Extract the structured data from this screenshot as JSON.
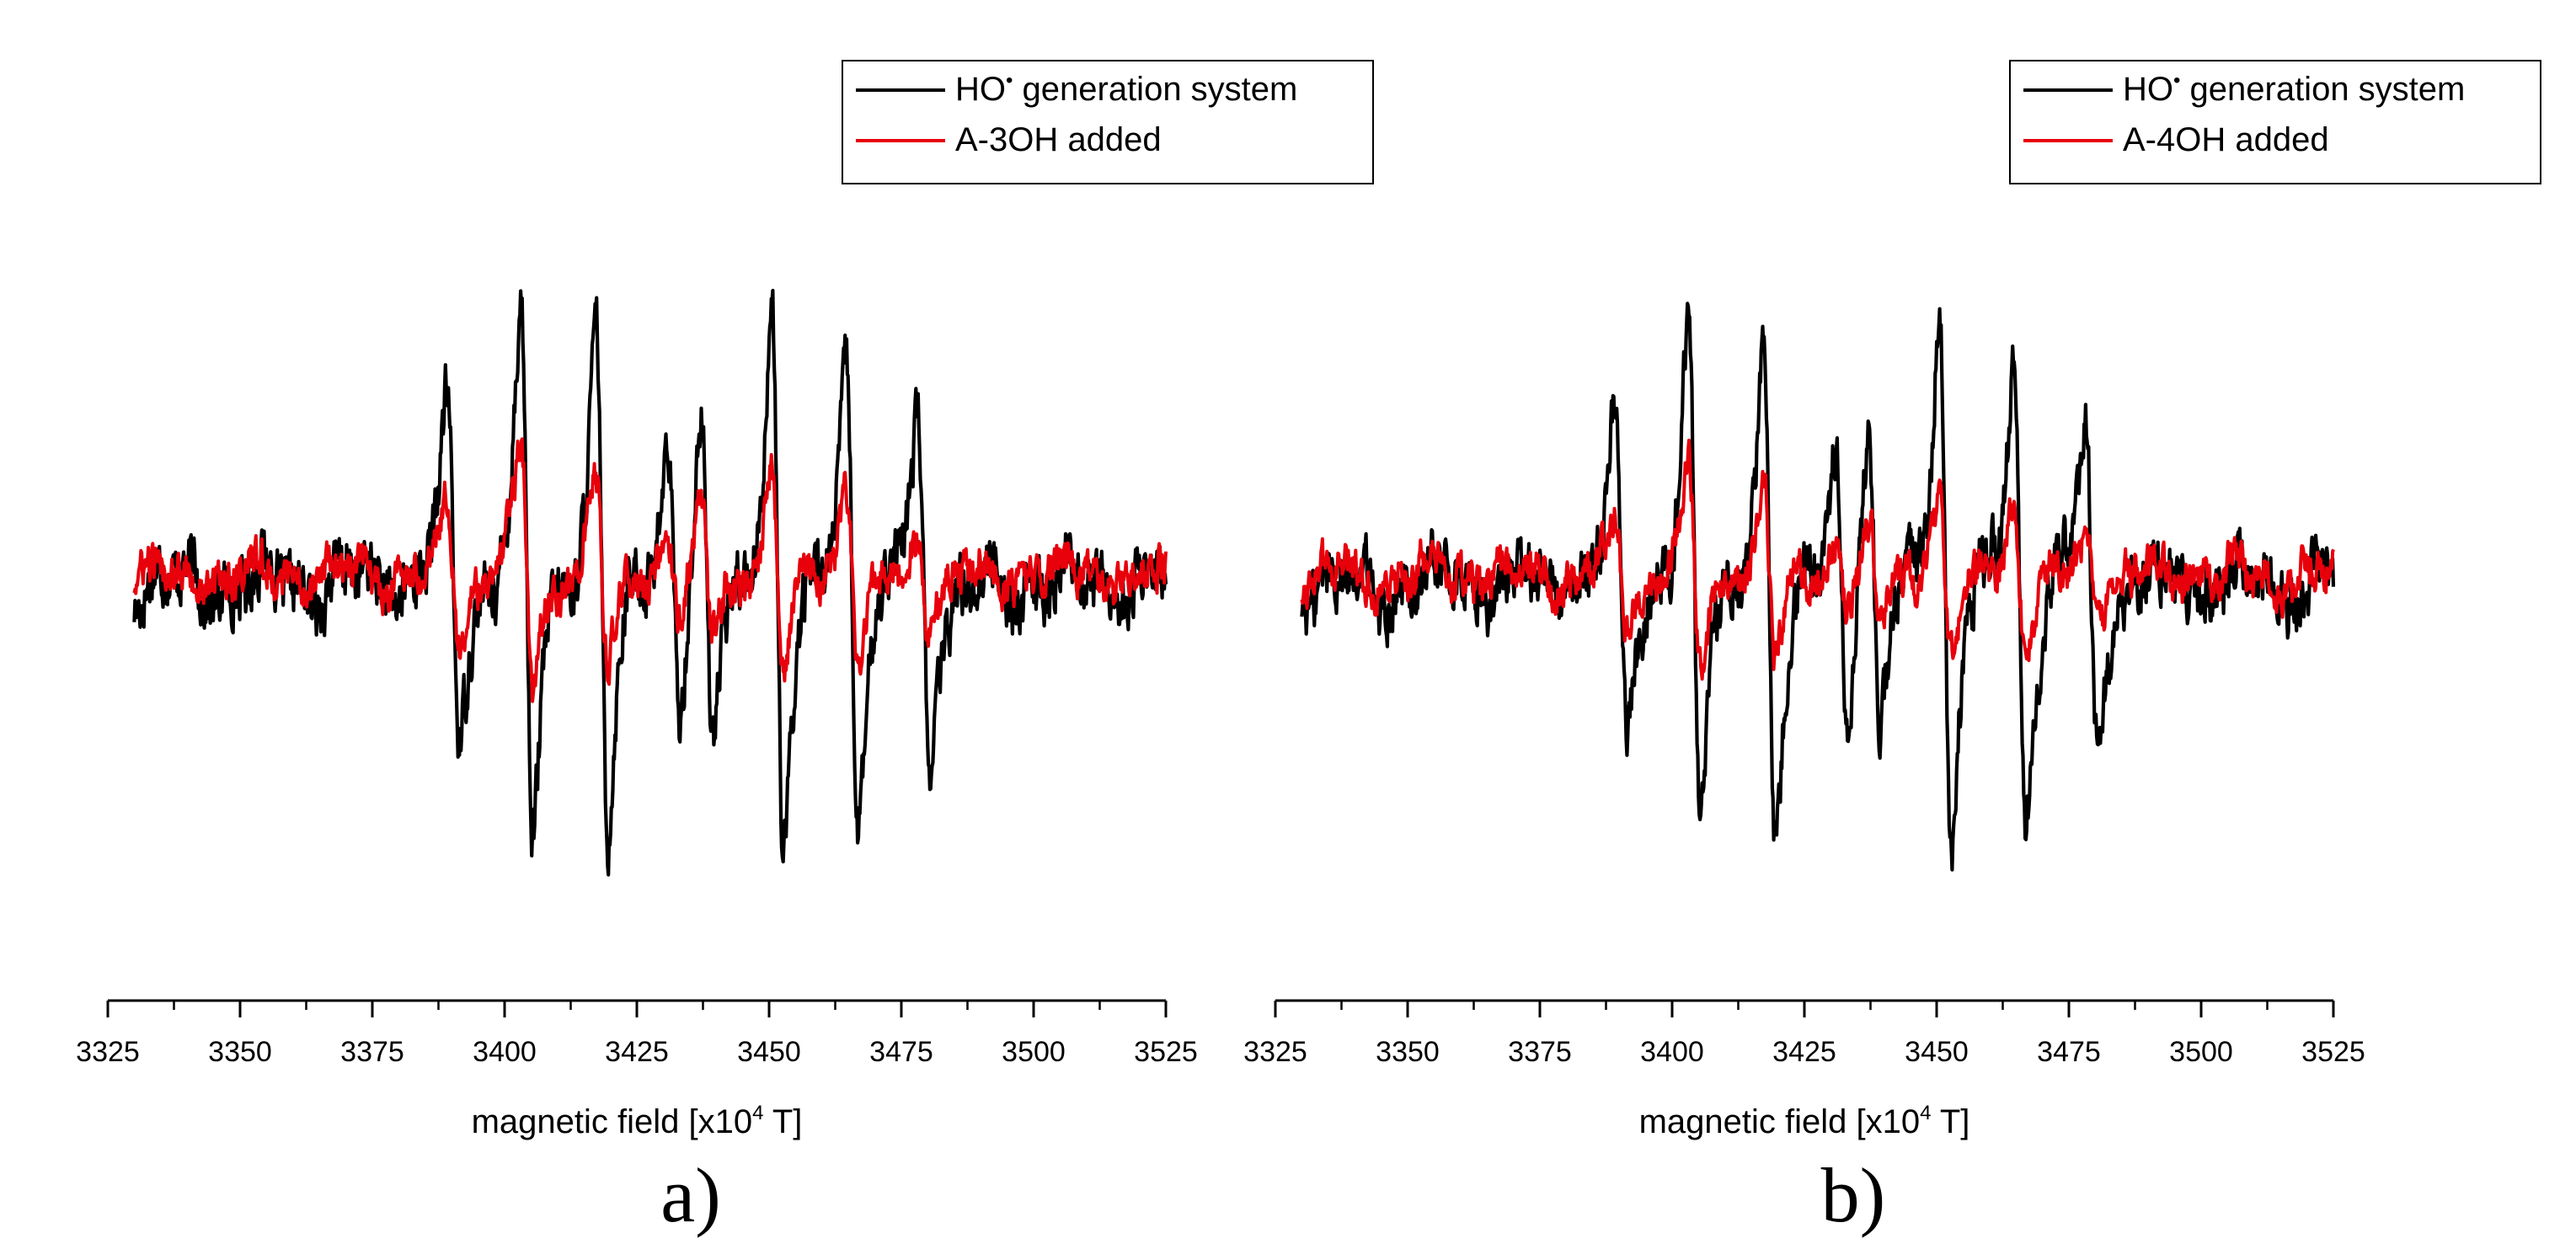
{
  "chart_data": [
    {
      "type": "line",
      "panel_label": "a)",
      "xlabel": "magnetic field [x10",
      "xlabel_sup": "4",
      "xlabel_tail": " T]",
      "xlim": [
        3325,
        3525
      ],
      "ylim": [
        -1.05,
        1.05
      ],
      "y_axis_visible": false,
      "x_ticks": [
        3325,
        3350,
        3375,
        3400,
        3425,
        3450,
        3475,
        3500,
        3525
      ],
      "x_tick_labels": [
        "3325",
        "3350",
        "3375",
        "3400",
        "3425",
        "3450",
        "3475",
        "3500",
        "3525"
      ],
      "legend_position": "top-right",
      "legend": [
        {
          "label": "HO",
          "sup": "•",
          "label_tail": " generation system",
          "color": "#000000"
        },
        {
          "label": "A-3OH added",
          "color": "#e8000b"
        }
      ],
      "series": [
        {
          "name": "HO• generation system",
          "color": "#000000",
          "x_start": 3330,
          "x_end": 3525,
          "baseline": 0.0,
          "noise_amplitude": 0.09,
          "lines": [
            {
              "center": 3390.3,
              "amplitude": 0.58
            },
            {
              "center": 3404.2,
              "amplitude": 0.93
            },
            {
              "center": 3418.4,
              "amplitude": 0.9
            },
            {
              "center": 3432.0,
              "amplitude": 0.48
            },
            {
              "center": 3438.2,
              "amplitude": 0.56
            },
            {
              "center": 3451.6,
              "amplitude": 1.0
            },
            {
              "center": 3465.7,
              "amplitude": 0.83
            },
            {
              "center": 3479.2,
              "amplitude": 0.59
            }
          ]
        },
        {
          "name": "A-3OH added",
          "color": "#e8000b",
          "x_start": 3330,
          "x_end": 3525,
          "baseline": 0.02,
          "noise_amplitude": 0.06,
          "lines": [
            {
              "center": 3390.3,
              "amplitude": 0.25
            },
            {
              "center": 3404.2,
              "amplitude": 0.43
            },
            {
              "center": 3418.4,
              "amplitude": 0.36
            },
            {
              "center": 3432.0,
              "amplitude": 0.15
            },
            {
              "center": 3438.2,
              "amplitude": 0.22
            },
            {
              "center": 3451.6,
              "amplitude": 0.35
            },
            {
              "center": 3465.7,
              "amplitude": 0.34
            },
            {
              "center": 3479.2,
              "amplitude": 0.13
            }
          ]
        }
      ]
    },
    {
      "type": "line",
      "panel_label": "b)",
      "xlabel": "magnetic field [x10",
      "xlabel_sup": "4",
      "xlabel_tail": " T]",
      "xlim": [
        3325,
        3525
      ],
      "ylim": [
        -1.05,
        1.05
      ],
      "y_axis_visible": false,
      "x_ticks": [
        3325,
        3350,
        3375,
        3400,
        3425,
        3450,
        3475,
        3500,
        3525
      ],
      "x_tick_labels": [
        "3325",
        "3350",
        "3375",
        "3400",
        "3425",
        "3450",
        "3475",
        "3500",
        "3525"
      ],
      "legend_position": "top-right",
      "legend": [
        {
          "label": "HO",
          "sup": "•",
          "label_tail": " generation system",
          "color": "#000000"
        },
        {
          "label": "A-4OH added",
          "color": "#e8000b"
        }
      ],
      "series": [
        {
          "name": "HO• generation system",
          "color": "#000000",
          "x_start": 3330,
          "x_end": 3525,
          "baseline": 0.0,
          "noise_amplitude": 0.09,
          "lines": [
            {
              "center": 3390.3,
              "amplitude": 0.58
            },
            {
              "center": 3404.2,
              "amplitude": 0.93
            },
            {
              "center": 3418.4,
              "amplitude": 0.9
            },
            {
              "center": 3432.0,
              "amplitude": 0.48
            },
            {
              "center": 3438.2,
              "amplitude": 0.56
            },
            {
              "center": 3451.6,
              "amplitude": 1.0
            },
            {
              "center": 3465.7,
              "amplitude": 0.83
            },
            {
              "center": 3479.2,
              "amplitude": 0.59
            }
          ]
        },
        {
          "name": "A-4OH added",
          "color": "#e8000b",
          "x_start": 3330,
          "x_end": 3525,
          "baseline": 0.02,
          "noise_amplitude": 0.06,
          "lines": [
            {
              "center": 3390.3,
              "amplitude": 0.18
            },
            {
              "center": 3404.2,
              "amplitude": 0.36
            },
            {
              "center": 3418.4,
              "amplitude": 0.32
            },
            {
              "center": 3432.0,
              "amplitude": 0.12
            },
            {
              "center": 3438.2,
              "amplitude": 0.16
            },
            {
              "center": 3451.6,
              "amplitude": 0.3
            },
            {
              "center": 3465.7,
              "amplitude": 0.28
            },
            {
              "center": 3479.2,
              "amplitude": 0.14
            }
          ]
        }
      ]
    }
  ]
}
